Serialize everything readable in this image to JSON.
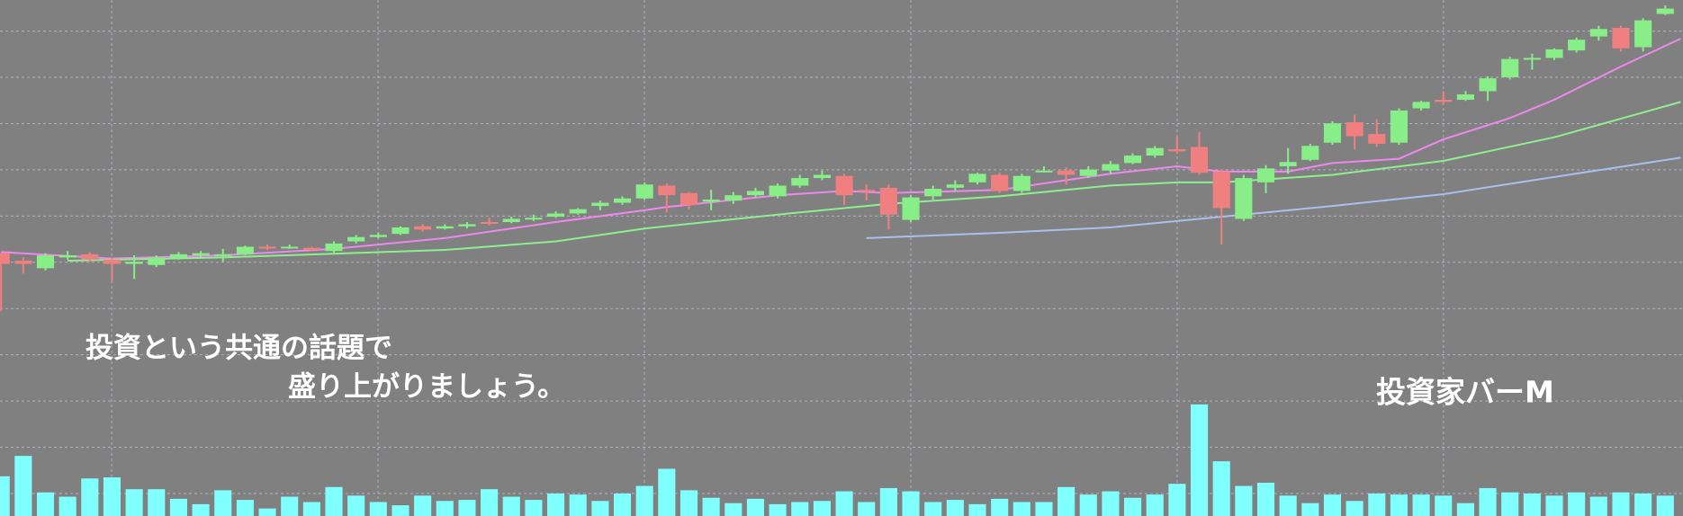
{
  "chart_data": {
    "type": "candlestick",
    "annotations": [
      "投資という共通の話題で",
      "盛り上がりましょう。",
      "投資家バーM"
    ],
    "ylim": [
      0,
      481
    ],
    "up_color": "#88ee88",
    "down_color": "#f08080",
    "volume_color": "#80ffff",
    "open": [
      245,
      238,
      231,
      241,
      244,
      239,
      235,
      234,
      241,
      243,
      243,
      244,
      251,
      250,
      250,
      247,
      256,
      260,
      263,
      270,
      268,
      270,
      274,
      274,
      277,
      279,
      282,
      289,
      292,
      296,
      308,
      301,
      293,
      294,
      299,
      298,
      308,
      315,
      317,
      304,
      306,
      276,
      298,
      306,
      311,
      318,
      303,
      321,
      322,
      317,
      322,
      329,
      336,
      342,
      344,
      321,
      277,
      311,
      326,
      332,
      348,
      367,
      356,
      348,
      380,
      388,
      388,
      396,
      409,
      426,
      427,
      434,
      447,
      455,
      437,
      468
    ],
    "high": [
      245,
      241,
      245,
      247,
      246,
      241,
      243,
      243,
      246,
      247,
      249,
      252,
      253,
      253,
      251,
      256,
      262,
      264,
      270,
      272,
      272,
      274,
      278,
      279,
      281,
      284,
      287,
      294,
      298,
      311,
      310,
      302,
      304,
      302,
      306,
      310,
      318,
      322,
      319,
      309,
      309,
      299,
      308,
      313,
      320,
      320,
      319,
      326,
      325,
      326,
      331,
      338,
      345,
      354,
      358,
      323,
      318,
      327,
      343,
      347,
      368,
      374,
      370,
      380,
      387,
      396,
      396,
      410,
      428,
      431,
      436,
      446,
      457,
      457,
      464,
      476
    ],
    "low": [
      191,
      226,
      229,
      239,
      237,
      219,
      221,
      232,
      239,
      241,
      237,
      243,
      248,
      249,
      247,
      245,
      254,
      259,
      262,
      265,
      267,
      268,
      271,
      273,
      275,
      278,
      281,
      285,
      290,
      295,
      283,
      286,
      285,
      291,
      297,
      296,
      306,
      313,
      290,
      294,
      267,
      274,
      295,
      303,
      309,
      301,
      301,
      320,
      309,
      315,
      319,
      328,
      334,
      338,
      318,
      253,
      275,
      301,
      319,
      331,
      346,
      342,
      344,
      346,
      378,
      383,
      387,
      387,
      407,
      416,
      425,
      432,
      443,
      433,
      433,
      467
    ],
    "close": [
      235,
      235,
      243,
      243,
      239,
      235,
      237,
      241,
      244,
      245,
      244,
      251,
      250,
      251,
      248,
      254,
      260,
      262,
      269,
      267,
      270,
      272,
      273,
      277,
      278,
      282,
      286,
      292,
      296,
      309,
      299,
      290,
      295,
      299,
      303,
      308,
      315,
      318,
      299,
      303,
      281,
      297,
      305,
      309,
      319,
      303,
      317,
      322,
      318,
      323,
      328,
      336,
      343,
      340,
      320,
      287,
      315,
      324,
      330,
      345,
      366,
      354,
      347,
      378,
      386,
      386,
      393,
      408,
      426,
      427,
      435,
      444,
      454,
      436,
      462,
      473
    ],
    "volume": [
      37,
      56,
      22,
      18,
      35,
      36,
      25,
      25,
      16,
      11,
      24,
      15,
      7,
      18,
      13,
      27,
      19,
      13,
      10,
      19,
      14,
      15,
      25,
      18,
      15,
      21,
      20,
      14,
      21,
      28,
      44,
      24,
      17,
      12,
      16,
      11,
      13,
      14,
      23,
      13,
      26,
      23,
      13,
      15,
      11,
      16,
      13,
      13,
      27,
      20,
      23,
      17,
      20,
      30,
      104,
      51,
      28,
      31,
      19,
      12,
      20,
      14,
      21,
      20,
      20,
      19,
      12,
      26,
      22,
      21,
      19,
      22,
      18,
      22,
      21,
      19
    ],
    "ma_lines": [
      {
        "color": "#ee88ee",
        "x": [
          0,
          5,
          10,
          15,
          20,
          25,
          29,
          30,
          35,
          38,
          40,
          45,
          50,
          53,
          55,
          58,
          60,
          63,
          65,
          68,
          70,
          73,
          75.7
        ],
        "values": [
          246,
          240,
          243,
          249,
          259,
          274,
          285,
          288,
          299,
          303,
          301,
          304,
          319,
          326,
          321,
          321,
          329,
          333,
          351,
          371,
          388,
          419,
          445
        ]
      },
      {
        "color": "#8fee8f",
        "x": [
          3,
          10,
          20,
          25,
          29,
          35,
          40,
          45,
          50,
          53,
          55,
          60,
          65,
          70,
          75.7
        ],
        "values": [
          238,
          241,
          248,
          256,
          268,
          281,
          291,
          298,
          308,
          311,
          311,
          318,
          331,
          353,
          386
        ]
      },
      {
        "color": "#a8c0ee",
        "x": [
          39,
          45,
          50,
          55,
          60,
          65,
          70,
          75.7
        ],
        "values": [
          259,
          264,
          269,
          279,
          289,
          300,
          316,
          334
        ]
      }
    ]
  }
}
